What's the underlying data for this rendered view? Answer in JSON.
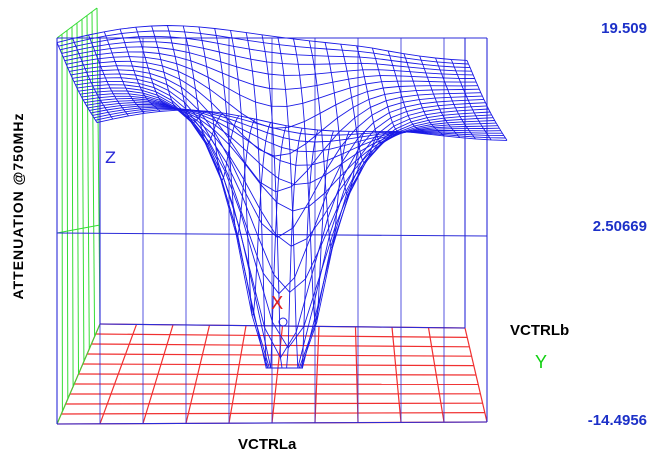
{
  "chart_data": {
    "type": "surface3d",
    "title": "",
    "zlabel": "ATTENUATION @750MHz",
    "xlabel": "VCTRLa",
    "ylabel": "VCTRLb",
    "axis_letters": {
      "x": "X",
      "y": "Y",
      "z": "Z"
    },
    "z_ticks": [
      "19.509",
      "2.50669",
      "-14.4956"
    ],
    "zlim": [
      -14.4956,
      19.509
    ],
    "grid_lines": 10,
    "colors": {
      "surface": "#1a1ae6",
      "box": "#2b2bd8",
      "floor": "#f03030",
      "side_wall": "#35dd35",
      "x_marker": "#e02020",
      "z_ticks": "#1c30c8"
    },
    "surface_shape": "broad plateau near the top with a deep narrow notch dropping toward the minimum near the centre-left"
  }
}
